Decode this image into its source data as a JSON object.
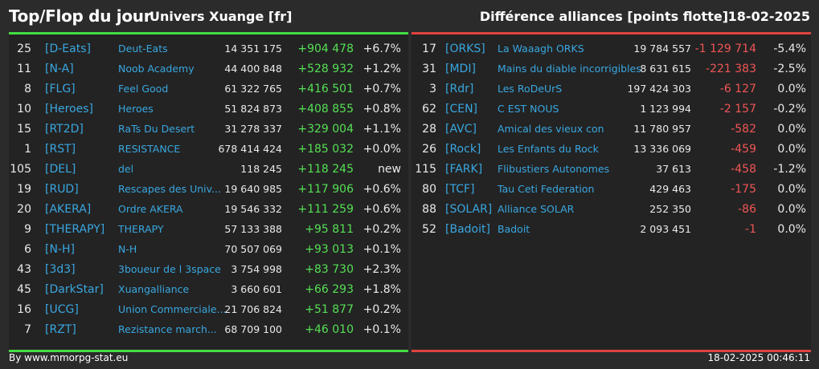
{
  "header": {
    "title": "Top/Flop du jour",
    "universe": "Univers Xuange [fr]",
    "subtitle": "Différence alliances [points flotte]",
    "date": "18-02-2025"
  },
  "colors": {
    "top_accent": "#44dd44",
    "flop_accent": "#e0443e",
    "tag": "#39a7e0"
  },
  "top": [
    {
      "rank": "25",
      "tag": "[D-Eats]",
      "name": "Deut-Eats",
      "points": "14 351 175",
      "diff": "+904 478",
      "pct": "+6.7%"
    },
    {
      "rank": "11",
      "tag": "[N-A]",
      "name": "Noob Academy",
      "points": "44 400 848",
      "diff": "+528 932",
      "pct": "+1.2%"
    },
    {
      "rank": "8",
      "tag": "[FLG]",
      "name": "Feel Good",
      "points": "61 322 765",
      "diff": "+416 501",
      "pct": "+0.7%"
    },
    {
      "rank": "10",
      "tag": "[Heroes]",
      "name": "Heroes",
      "points": "51 824 873",
      "diff": "+408 855",
      "pct": "+0.8%"
    },
    {
      "rank": "15",
      "tag": "[RT2D]",
      "name": "RaTs Du Desert",
      "points": "31 278 337",
      "diff": "+329 004",
      "pct": "+1.1%"
    },
    {
      "rank": "1",
      "tag": "[RST]",
      "name": "RESISTANCE",
      "points": "678 414 424",
      "diff": "+185 032",
      "pct": "+0.0%"
    },
    {
      "rank": "105",
      "tag": "[DEL]",
      "name": "del",
      "points": "118 245",
      "diff": "+118 245",
      "pct": "new"
    },
    {
      "rank": "19",
      "tag": "[RUD]",
      "name": "Rescapes des Univ...",
      "points": "19 640 985",
      "diff": "+117 906",
      "pct": "+0.6%"
    },
    {
      "rank": "20",
      "tag": "[AKERA]",
      "name": "Ordre AKERA",
      "points": "19 546 332",
      "diff": "+111 259",
      "pct": "+0.6%"
    },
    {
      "rank": "9",
      "tag": "[THERAPY]",
      "name": "THERAPY",
      "points": "57 133 388",
      "diff": "+95 811",
      "pct": "+0.2%"
    },
    {
      "rank": "6",
      "tag": "[N-H]",
      "name": "N-H",
      "points": "70 507 069",
      "diff": "+93 013",
      "pct": "+0.1%"
    },
    {
      "rank": "43",
      "tag": "[3d3]",
      "name": "3boueur de l 3space",
      "points": "3 754 998",
      "diff": "+83 730",
      "pct": "+2.3%"
    },
    {
      "rank": "45",
      "tag": "[DarkStar]",
      "name": "Xuangalliance",
      "points": "3 660 601",
      "diff": "+66 293",
      "pct": "+1.8%"
    },
    {
      "rank": "16",
      "tag": "[UCG]",
      "name": "Union Commerciale...",
      "points": "21 706 824",
      "diff": "+51 877",
      "pct": "+0.2%"
    },
    {
      "rank": "7",
      "tag": "[RZT]",
      "name": "Rezistance march...",
      "points": "68 709 100",
      "diff": "+46 010",
      "pct": "+0.1%"
    }
  ],
  "flop": [
    {
      "rank": "17",
      "tag": "[ORKS]",
      "name": "La Waaagh ORKS",
      "points": "19 784 557",
      "diff": "-1 129 714",
      "pct": "-5.4%"
    },
    {
      "rank": "31",
      "tag": "[MDI]",
      "name": "Mains du diable incorrigibles",
      "points": "8 631 615",
      "diff": "-221 383",
      "pct": "-2.5%"
    },
    {
      "rank": "3",
      "tag": "[Rdr]",
      "name": "Les RoDeUrS",
      "points": "197 424 303",
      "diff": "-6 127",
      "pct": "0.0%"
    },
    {
      "rank": "62",
      "tag": "[CEN]",
      "name": "C EST NOUS",
      "points": "1 123 994",
      "diff": "-2 157",
      "pct": "-0.2%"
    },
    {
      "rank": "28",
      "tag": "[AVC]",
      "name": "Amical des vieux con",
      "points": "11 780 957",
      "diff": "-582",
      "pct": "0.0%"
    },
    {
      "rank": "26",
      "tag": "[Rock]",
      "name": "Les Enfants du Rock",
      "points": "13 336 069",
      "diff": "-459",
      "pct": "0.0%"
    },
    {
      "rank": "115",
      "tag": "[FARK]",
      "name": "Flibustiers Autonomes",
      "points": "37 613",
      "diff": "-458",
      "pct": "-1.2%"
    },
    {
      "rank": "80",
      "tag": "[TCF]",
      "name": "Tau Ceti Federation",
      "points": "429 463",
      "diff": "-175",
      "pct": "0.0%"
    },
    {
      "rank": "88",
      "tag": "[SOLAR]",
      "name": "Alliance SOLAR",
      "points": "252 350",
      "diff": "-86",
      "pct": "0.0%"
    },
    {
      "rank": "52",
      "tag": "[Badoit]",
      "name": "Badoit",
      "points": "2 093 451",
      "diff": "-1",
      "pct": "0.0%"
    }
  ],
  "footer": {
    "credit": "By www.mmorpg-stat.eu",
    "timestamp": "18-02-2025 00:46:11"
  }
}
